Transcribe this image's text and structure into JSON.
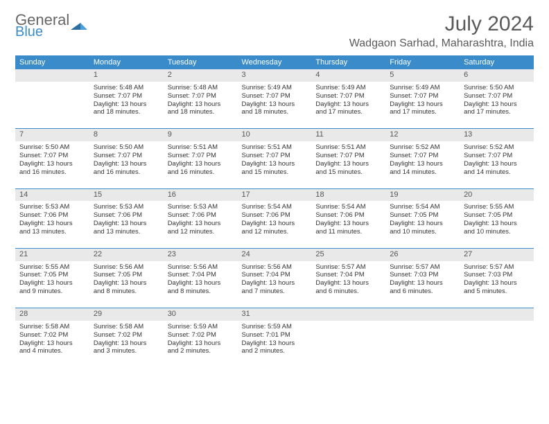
{
  "logo": {
    "word1": "General",
    "word2": "Blue"
  },
  "title": "July 2024",
  "location": "Wadgaon Sarhad, Maharashtra, India",
  "colors": {
    "header_bg": "#3a8bc9",
    "header_text": "#ffffff",
    "daynum_bg": "#e9e9e9",
    "text": "#333333",
    "title_text": "#5a5a5a"
  },
  "weekdays": [
    "Sunday",
    "Monday",
    "Tuesday",
    "Wednesday",
    "Thursday",
    "Friday",
    "Saturday"
  ],
  "weeks": [
    [
      null,
      {
        "n": "1",
        "sr": "5:48 AM",
        "ss": "7:07 PM",
        "dl": "13 hours and 18 minutes."
      },
      {
        "n": "2",
        "sr": "5:48 AM",
        "ss": "7:07 PM",
        "dl": "13 hours and 18 minutes."
      },
      {
        "n": "3",
        "sr": "5:49 AM",
        "ss": "7:07 PM",
        "dl": "13 hours and 18 minutes."
      },
      {
        "n": "4",
        "sr": "5:49 AM",
        "ss": "7:07 PM",
        "dl": "13 hours and 17 minutes."
      },
      {
        "n": "5",
        "sr": "5:49 AM",
        "ss": "7:07 PM",
        "dl": "13 hours and 17 minutes."
      },
      {
        "n": "6",
        "sr": "5:50 AM",
        "ss": "7:07 PM",
        "dl": "13 hours and 17 minutes."
      }
    ],
    [
      {
        "n": "7",
        "sr": "5:50 AM",
        "ss": "7:07 PM",
        "dl": "13 hours and 16 minutes."
      },
      {
        "n": "8",
        "sr": "5:50 AM",
        "ss": "7:07 PM",
        "dl": "13 hours and 16 minutes."
      },
      {
        "n": "9",
        "sr": "5:51 AM",
        "ss": "7:07 PM",
        "dl": "13 hours and 16 minutes."
      },
      {
        "n": "10",
        "sr": "5:51 AM",
        "ss": "7:07 PM",
        "dl": "13 hours and 15 minutes."
      },
      {
        "n": "11",
        "sr": "5:51 AM",
        "ss": "7:07 PM",
        "dl": "13 hours and 15 minutes."
      },
      {
        "n": "12",
        "sr": "5:52 AM",
        "ss": "7:07 PM",
        "dl": "13 hours and 14 minutes."
      },
      {
        "n": "13",
        "sr": "5:52 AM",
        "ss": "7:07 PM",
        "dl": "13 hours and 14 minutes."
      }
    ],
    [
      {
        "n": "14",
        "sr": "5:53 AM",
        "ss": "7:06 PM",
        "dl": "13 hours and 13 minutes."
      },
      {
        "n": "15",
        "sr": "5:53 AM",
        "ss": "7:06 PM",
        "dl": "13 hours and 13 minutes."
      },
      {
        "n": "16",
        "sr": "5:53 AM",
        "ss": "7:06 PM",
        "dl": "13 hours and 12 minutes."
      },
      {
        "n": "17",
        "sr": "5:54 AM",
        "ss": "7:06 PM",
        "dl": "13 hours and 12 minutes."
      },
      {
        "n": "18",
        "sr": "5:54 AM",
        "ss": "7:06 PM",
        "dl": "13 hours and 11 minutes."
      },
      {
        "n": "19",
        "sr": "5:54 AM",
        "ss": "7:05 PM",
        "dl": "13 hours and 10 minutes."
      },
      {
        "n": "20",
        "sr": "5:55 AM",
        "ss": "7:05 PM",
        "dl": "13 hours and 10 minutes."
      }
    ],
    [
      {
        "n": "21",
        "sr": "5:55 AM",
        "ss": "7:05 PM",
        "dl": "13 hours and 9 minutes."
      },
      {
        "n": "22",
        "sr": "5:56 AM",
        "ss": "7:05 PM",
        "dl": "13 hours and 8 minutes."
      },
      {
        "n": "23",
        "sr": "5:56 AM",
        "ss": "7:04 PM",
        "dl": "13 hours and 8 minutes."
      },
      {
        "n": "24",
        "sr": "5:56 AM",
        "ss": "7:04 PM",
        "dl": "13 hours and 7 minutes."
      },
      {
        "n": "25",
        "sr": "5:57 AM",
        "ss": "7:04 PM",
        "dl": "13 hours and 6 minutes."
      },
      {
        "n": "26",
        "sr": "5:57 AM",
        "ss": "7:03 PM",
        "dl": "13 hours and 6 minutes."
      },
      {
        "n": "27",
        "sr": "5:57 AM",
        "ss": "7:03 PM",
        "dl": "13 hours and 5 minutes."
      }
    ],
    [
      {
        "n": "28",
        "sr": "5:58 AM",
        "ss": "7:02 PM",
        "dl": "13 hours and 4 minutes."
      },
      {
        "n": "29",
        "sr": "5:58 AM",
        "ss": "7:02 PM",
        "dl": "13 hours and 3 minutes."
      },
      {
        "n": "30",
        "sr": "5:59 AM",
        "ss": "7:02 PM",
        "dl": "13 hours and 2 minutes."
      },
      {
        "n": "31",
        "sr": "5:59 AM",
        "ss": "7:01 PM",
        "dl": "13 hours and 2 minutes."
      },
      null,
      null,
      null
    ]
  ],
  "labels": {
    "sunrise": "Sunrise:",
    "sunset": "Sunset:",
    "daylight": "Daylight:"
  }
}
